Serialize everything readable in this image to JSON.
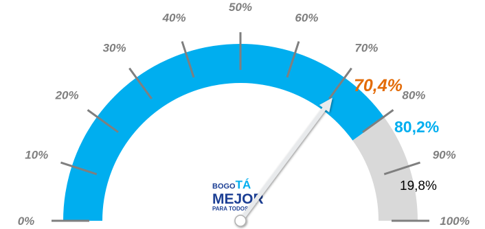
{
  "chart_data": {
    "type": "gauge",
    "scale": {
      "min": 0,
      "max": 100,
      "step": 10
    },
    "tick_labels": [
      "0%",
      "10%",
      "20%",
      "30%",
      "40%",
      "50%",
      "60%",
      "70%",
      "80%",
      "90%",
      "100%"
    ],
    "segments": [
      {
        "value": 80.2,
        "color": "#00aeef"
      },
      {
        "value": 19.8,
        "color": "#d9d9d9"
      }
    ],
    "needle": {
      "value": 70.4,
      "color": "#e8eaec"
    },
    "annotations": [
      {
        "text": "70,4%",
        "color": "#e36c09"
      },
      {
        "text": "80,2%",
        "color": "#00aeef"
      },
      {
        "text": "19,8%",
        "color": "#000000"
      }
    ]
  },
  "logo": {
    "line1_prefix": "BOGO",
    "line1_accent": "TÁ",
    "line2": "MEJOR",
    "line3": "PARA TODOS"
  },
  "colors": {
    "tick_color": "#7f7f7f",
    "logo_blue": "#1c3f94",
    "logo_cyan": "#00aeef"
  }
}
